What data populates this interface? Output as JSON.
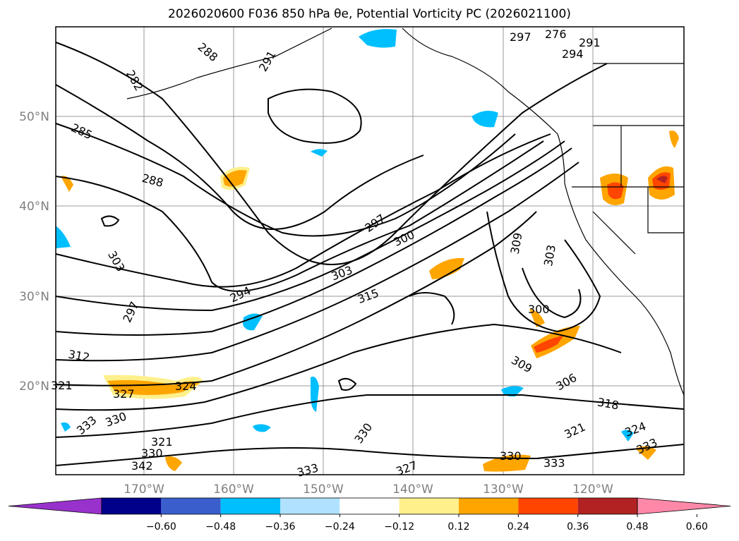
{
  "title": "2026020600 F036 850 hPa θe, Potential Vorticity PC (2026021100)",
  "lat_labels": [
    "50°N",
    "40°N",
    "30°N",
    "20°N"
  ],
  "lon_labels": [
    "170°W",
    "160°W",
    "150°W",
    "140°W",
    "130°W",
    "120°W"
  ],
  "contour_labels": [
    "288",
    "291",
    "282",
    "285",
    "288",
    "297",
    "300",
    "303",
    "294",
    "315",
    "297",
    "303",
    "312",
    "321",
    "327",
    "324",
    "330",
    "333",
    "321",
    "330",
    "342",
    "333",
    "330",
    "327",
    "309",
    "303",
    "300",
    "309",
    "306",
    "318",
    "321",
    "324",
    "333",
    "330",
    "333",
    "297",
    "276",
    "291",
    "294"
  ],
  "colorbar": {
    "colors": [
      "#9932cc",
      "#00008b",
      "#3a5fcd",
      "#00bfff",
      "#b0e2ff",
      "#ffffff",
      "#fff08c",
      "#ffa500",
      "#ff4500",
      "#b22222",
      "#ff88a8"
    ],
    "ticks": [
      "−0.60",
      "−0.48",
      "−0.36",
      "−0.24",
      "−0.12",
      "0.12",
      "0.24",
      "0.36",
      "0.48",
      "0.60"
    ]
  }
}
